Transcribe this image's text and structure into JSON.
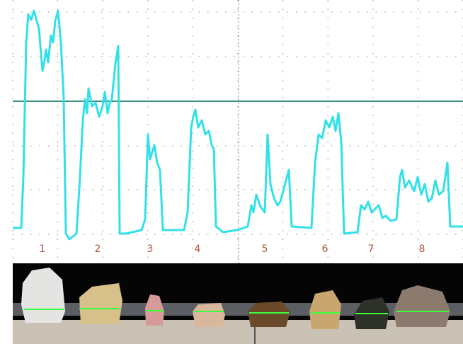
{
  "markers": {
    "labels": [
      "1",
      "2",
      "3",
      "4",
      "5",
      "6",
      "7",
      "8"
    ]
  }
}
